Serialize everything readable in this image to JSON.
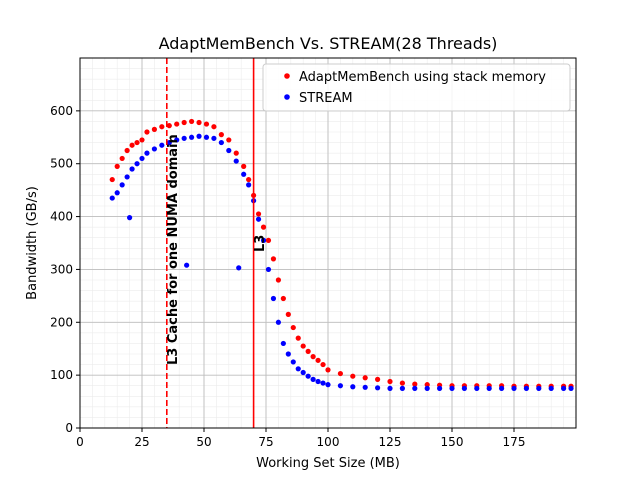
{
  "chart_data": {
    "type": "scatter",
    "title": "AdaptMemBench Vs. STREAM(28 Threads)",
    "xlabel": "Working Set Size (MB)",
    "ylabel": "Bandwidth (GB/s)",
    "xlim": [
      0,
      200
    ],
    "ylim": [
      0,
      700
    ],
    "xticks": [
      0,
      25,
      50,
      75,
      100,
      125,
      150,
      175
    ],
    "yticks": [
      0,
      100,
      200,
      300,
      400,
      500,
      600
    ],
    "grid": true,
    "legend_position": "top-right",
    "vlines": [
      {
        "x": 35,
        "style": "dashed",
        "color": "#ff0000",
        "label": "L3 Cache for one NUMA domain"
      },
      {
        "x": 70,
        "style": "solid",
        "color": "#ff0000",
        "label": "L3"
      }
    ],
    "series": [
      {
        "name": "AdaptMemBench using stack memory",
        "color": "#ff0000",
        "x": [
          13,
          15,
          17,
          19,
          21,
          23,
          25,
          27,
          30,
          33,
          36,
          39,
          42,
          45,
          48,
          51,
          54,
          57,
          60,
          63,
          66,
          68,
          70,
          72,
          74,
          76,
          78,
          80,
          82,
          84,
          86,
          88,
          90,
          92,
          94,
          96,
          98,
          100,
          105,
          110,
          115,
          120,
          125,
          130,
          135,
          140,
          145,
          150,
          155,
          160,
          165,
          170,
          175,
          180,
          185,
          190,
          195,
          198
        ],
        "y": [
          470,
          495,
          510,
          525,
          535,
          540,
          545,
          560,
          565,
          570,
          572,
          575,
          578,
          580,
          578,
          575,
          570,
          555,
          545,
          520,
          495,
          470,
          440,
          405,
          380,
          355,
          320,
          280,
          245,
          215,
          190,
          170,
          155,
          145,
          135,
          128,
          120,
          110,
          103,
          98,
          95,
          92,
          88,
          85,
          83,
          82,
          81,
          80,
          80,
          80,
          80,
          80,
          79,
          79,
          79,
          79,
          79,
          79
        ]
      },
      {
        "name": "STREAM",
        "color": "#0000ff",
        "x": [
          13,
          15,
          17,
          19,
          20,
          21,
          23,
          25,
          27,
          30,
          33,
          36,
          39,
          42,
          43,
          45,
          48,
          51,
          54,
          57,
          60,
          63,
          64,
          66,
          68,
          70,
          72,
          74,
          76,
          78,
          80,
          82,
          84,
          86,
          88,
          90,
          92,
          94,
          96,
          98,
          100,
          105,
          110,
          115,
          120,
          125,
          130,
          135,
          140,
          145,
          150,
          155,
          160,
          165,
          170,
          175,
          180,
          185,
          190,
          195,
          198
        ],
        "y": [
          435,
          445,
          460,
          475,
          398,
          490,
          500,
          510,
          520,
          528,
          535,
          540,
          545,
          548,
          308,
          550,
          552,
          550,
          548,
          540,
          525,
          505,
          303,
          480,
          460,
          430,
          395,
          355,
          300,
          245,
          200,
          160,
          140,
          125,
          112,
          105,
          98,
          92,
          88,
          85,
          82,
          80,
          78,
          77,
          76,
          75,
          75,
          75,
          75,
          75,
          75,
          75,
          75,
          75,
          75,
          75,
          75,
          75,
          75,
          75,
          75
        ]
      }
    ]
  }
}
